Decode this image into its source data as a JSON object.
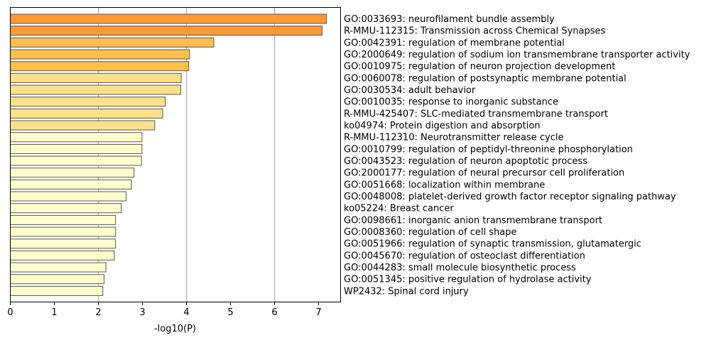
{
  "chart_data": {
    "type": "bar",
    "orientation": "horizontal",
    "xlabel": "-log10(P)",
    "ylabel": "",
    "title": "",
    "xlim": [
      0,
      7.5
    ],
    "xticks": [
      "0",
      "1",
      "2",
      "3",
      "4",
      "5",
      "6",
      "7"
    ],
    "grid": "vertical lines at x = 2, 4, 6",
    "category_labels_side": "right",
    "categories": [
      "GO:0033693: neurofilament bundle assembly",
      "R-MMU-112315: Transmission across Chemical Synapses",
      "GO:0042391: regulation of membrane potential",
      "GO:2000649: regulation of sodium ion transmembrane transporter activity",
      "GO:0010975: regulation of neuron projection development",
      "GO:0060078: regulation of postsynaptic membrane potential",
      "GO:0030534: adult behavior",
      "GO:0010035: response to inorganic substance",
      "R-MMU-425407: SLC-mediated transmembrane transport",
      "ko04974: Protein digestion and absorption",
      "R-MMU-112310: Neurotransmitter release cycle",
      "GO:0010799: regulation of peptidyl-threonine phosphorylation",
      "GO:0043523: regulation of neuron apoptotic process",
      "GO:2000177: regulation of neural precursor cell proliferation",
      "GO:0051668: localization within membrane",
      "GO:0048008: platelet-derived growth factor receptor signaling pathway",
      "ko05224: Breast cancer",
      "GO:0098661: inorganic anion transmembrane transport",
      "GO:0008360: regulation of cell shape",
      "GO:0051966: regulation of synaptic transmission, glutamatergic",
      "GO:0045670: regulation of osteoclast differentiation",
      "GO:0044283: small molecule biosynthetic process",
      "GO:0051345: positive regulation of hydrolase activity",
      "WP2432: Spinal cord injury"
    ],
    "values": [
      7.18,
      7.08,
      4.62,
      4.07,
      4.05,
      3.88,
      3.87,
      3.52,
      3.46,
      3.28,
      2.99,
      2.99,
      2.98,
      2.81,
      2.75,
      2.63,
      2.52,
      2.39,
      2.39,
      2.39,
      2.36,
      2.17,
      2.13,
      2.1
    ],
    "colors": [
      "#ff9933",
      "#ff9933",
      "#ffbf4d",
      "#ffbf4d",
      "#ffbf4d",
      "#ffe08a",
      "#ffe08a",
      "#ffe08a",
      "#ffe08a",
      "#ffe08a",
      "#ffffcc",
      "#ffffcc",
      "#ffffcc",
      "#ffffcc",
      "#ffffcc",
      "#ffffcc",
      "#ffffcc",
      "#ffffcc",
      "#ffffcc",
      "#ffffcc",
      "#ffffcc",
      "#ffffcc",
      "#ffffcc",
      "#ffffcc"
    ],
    "bar_edge_color": "#555555",
    "grid_color": "#b0b0b0"
  }
}
